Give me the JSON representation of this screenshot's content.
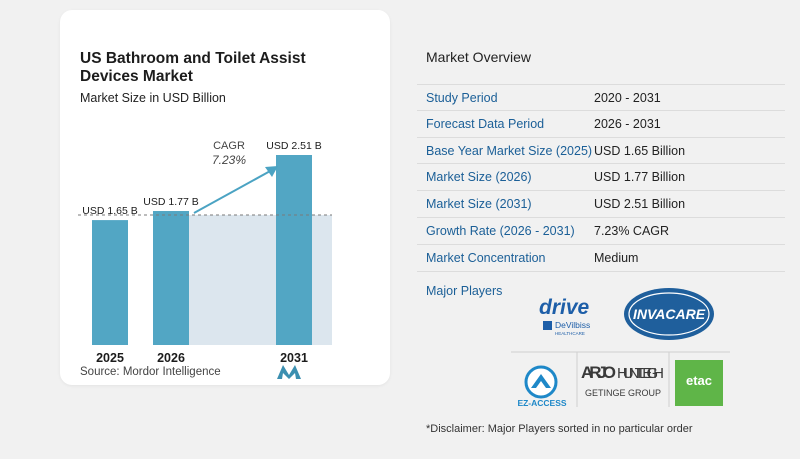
{
  "chart": {
    "title": "US Bathroom and Toilet Assist Devices Market",
    "subtitle": "Market Size in USD Billion",
    "cagr_label": "CAGR",
    "cagr_value": "7.23%",
    "source": "Source:  Mordor Intelligence",
    "colors": {
      "bar": "#52a6c4",
      "bar_light": "#b9dde8",
      "highlight": "#dce6ee",
      "text": "#1c1c1c",
      "arrow": "#4ba3c3"
    }
  },
  "chart_data": {
    "type": "bar",
    "categories": [
      "2025",
      "2026",
      "2031"
    ],
    "values": [
      1.65,
      1.77,
      2.51
    ],
    "data_labels": [
      "USD 1.65 B",
      "USD 1.77 B",
      "USD 2.51 B"
    ],
    "ylim": [
      0,
      2.51
    ],
    "title": "US Bathroom and Toilet Assist Devices Market",
    "ylabel": "",
    "xlabel": "",
    "annotation": "CAGR 7.23%"
  },
  "overview": {
    "title": "Market Overview",
    "rows": [
      {
        "label": "Study Period",
        "value": "2020 - 2031"
      },
      {
        "label": "Forecast Data Period",
        "value": "2026 - 2031"
      },
      {
        "label": "Base Year Market Size (2025)",
        "value": "USD 1.65 Billion"
      },
      {
        "label": "Market Size (2026)",
        "value": "USD 1.77 Billion"
      },
      {
        "label": "Market Size (2031)",
        "value": "USD 2.51 Billion"
      },
      {
        "label": "Growth Rate (2026 - 2031)",
        "value": "7.23% CAGR"
      },
      {
        "label": "Market Concentration",
        "value": "Medium"
      }
    ],
    "major_players_label": "Major Players",
    "disclaimer": "*Disclaimer: Major Players sorted in no particular order"
  },
  "players": {
    "drive_name": "drive",
    "drive_sub": "DeVilbiss",
    "drive_sub2": "HEALTHCARE",
    "invacare": "INVACARE",
    "ez_access": "EZ-ACCESS",
    "arjo_1": "ARJO",
    "arjo_2": "HUNTLEIGH",
    "arjo_sub": "GETINGE GROUP",
    "etac": "etac"
  }
}
